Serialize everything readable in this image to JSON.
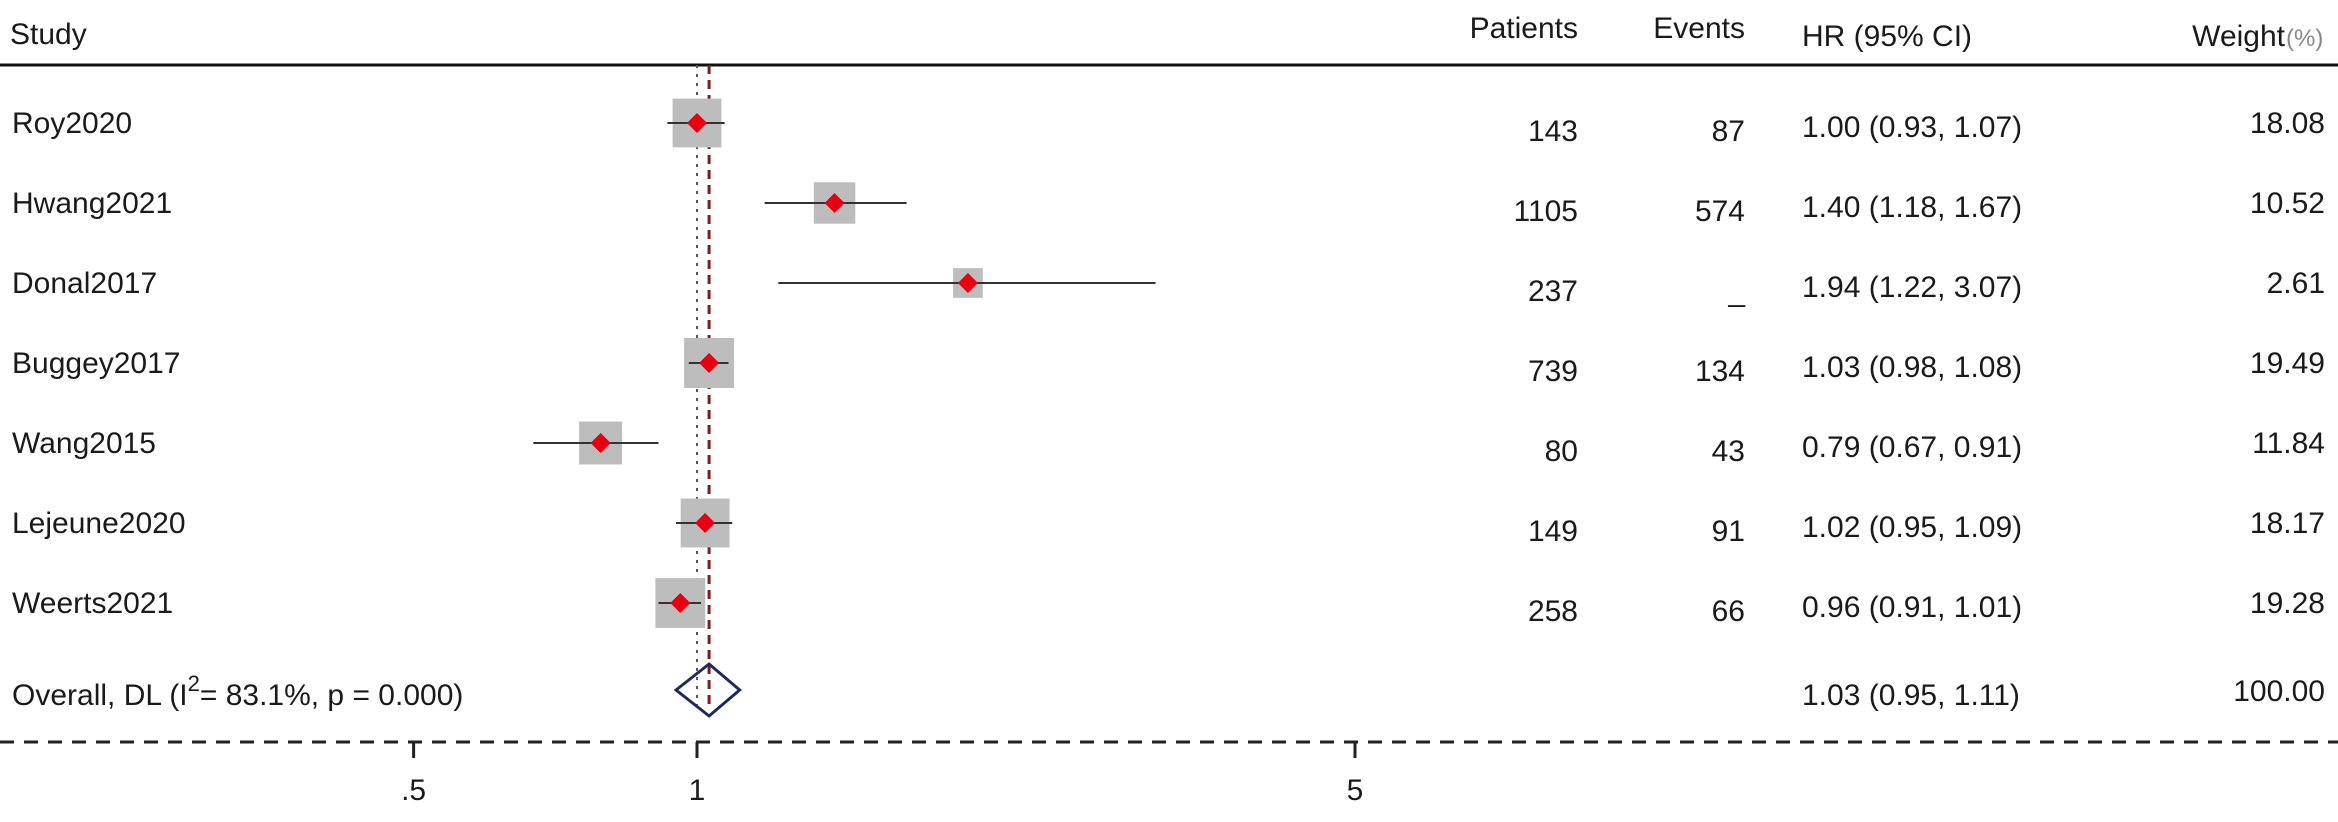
{
  "chart_data": {
    "type": "forest",
    "header": {
      "study": "Study",
      "patients": "Patients",
      "events": "Events",
      "hr": "HR (95% CI)",
      "weight": "Weight",
      "weight_unit": "(%)"
    },
    "studies": [
      {
        "name": "Roy2020",
        "patients": "143",
        "events": "87",
        "hr": 1.0,
        "lo": 0.93,
        "hi": 1.07,
        "hr_text": "1.00 (0.93, 1.07)",
        "weight": "18.08"
      },
      {
        "name": "Hwang2021",
        "patients": "1105",
        "events": "574",
        "hr": 1.4,
        "lo": 1.18,
        "hi": 1.67,
        "hr_text": "1.40 (1.18, 1.67)",
        "weight": "10.52"
      },
      {
        "name": "Donal2017",
        "patients": "237",
        "events": "_",
        "hr": 1.94,
        "lo": 1.22,
        "hi": 3.07,
        "hr_text": "1.94 (1.22, 3.07)",
        "weight": "2.61"
      },
      {
        "name": "Buggey2017",
        "patients": "739",
        "events": "134",
        "hr": 1.03,
        "lo": 0.98,
        "hi": 1.08,
        "hr_text": "1.03 (0.98, 1.08)",
        "weight": "19.49"
      },
      {
        "name": "Wang2015",
        "patients": "80",
        "events": "43",
        "hr": 0.79,
        "lo": 0.67,
        "hi": 0.91,
        "hr_text": "0.79 (0.67, 0.91)",
        "weight": "11.84"
      },
      {
        "name": "Lejeune2020",
        "patients": "149",
        "events": "91",
        "hr": 1.02,
        "lo": 0.95,
        "hi": 1.09,
        "hr_text": "1.02 (0.95, 1.09)",
        "weight": "18.17"
      },
      {
        "name": "Weerts2021",
        "patients": "258",
        "events": "66",
        "hr": 0.96,
        "lo": 0.91,
        "hi": 1.01,
        "hr_text": "0.96 (0.91, 1.01)",
        "weight": "19.28"
      }
    ],
    "overall": {
      "label_prefix": "Overall, DL (I",
      "label_sup": "2",
      "label_suffix": "= 83.1%, p = 0.000)",
      "hr": 1.03,
      "lo": 0.95,
      "hi": 1.11,
      "hr_text": "1.03 (0.95, 1.11)",
      "weight": "100.00"
    },
    "x_axis": {
      "scale": "log",
      "ticks": [
        0.5,
        1,
        5
      ],
      "tick_labels": [
        ".5",
        "1",
        "5"
      ]
    },
    "null_value": 1,
    "colors": {
      "point": "#e60012",
      "box": "#bdbdbd",
      "ci_line": "#333333",
      "diamond": "#1f2a5c",
      "overall_line": "#7a1f1f",
      "null_line": "#555555"
    }
  }
}
